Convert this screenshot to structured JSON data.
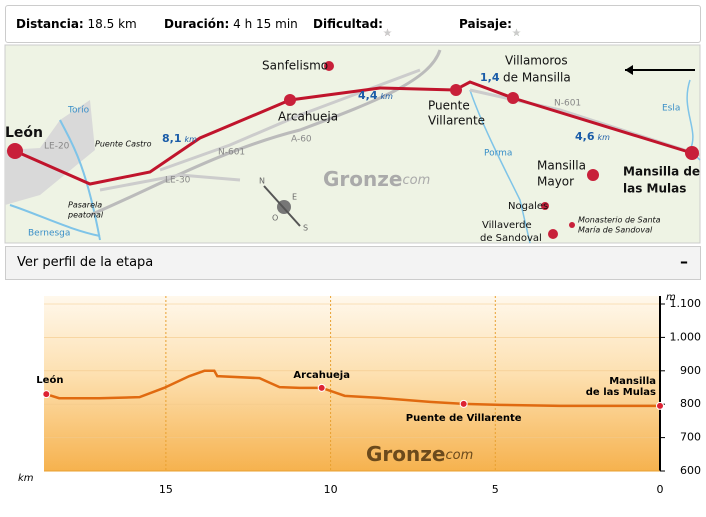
{
  "info": {
    "distance_label": "Distancia:",
    "distance": "18.5 km",
    "duration_label": "Duración:",
    "duration": "4 h 15 min",
    "difficulty": {
      "label": "Dificultad:",
      "filled": 1,
      "stars": 5,
      "color": "#e0303a"
    },
    "scenery": {
      "label": "Paisaje:",
      "filled": 1,
      "stars": 5,
      "color": "#6abf2a"
    }
  },
  "map": {
    "places": [
      "León",
      "Sanfelismo",
      "Arcahueja",
      "Puente",
      "Villarente",
      "Villamoros",
      "de Mansilla",
      "Mansilla",
      "Mayor",
      "Mansilla de",
      "las Mulas",
      "Nogales",
      "Villaverde",
      "de Sandoval",
      "Monasterio de Santa",
      "María de Sandoval"
    ],
    "roads": [
      "LE-20",
      "N-601",
      "A-60",
      "LE-30",
      "N-601",
      "Torío",
      "Porma",
      "Esla",
      "Bernesga",
      "Puente Castro",
      "Pasarela",
      "peatonal"
    ],
    "distances": [
      {
        "value": "8,1",
        "unit": "km"
      },
      {
        "value": "4,4",
        "unit": "km"
      },
      {
        "value": "1,4"
      },
      {
        "value": "4,6",
        "unit": "km"
      }
    ],
    "compass": [
      "N",
      "E",
      "S",
      "O"
    ],
    "watermark": {
      "text": "Gronze",
      "suffix": "com"
    }
  },
  "profile_header": {
    "title": "Ver perfil de la etapa",
    "toggle": "–"
  },
  "chart_data": {
    "type": "line",
    "x_label": "km",
    "y_label": "m",
    "color": "#e06a10",
    "x": [
      18.63,
      18.24,
      17.02,
      15.8,
      15.05,
      14.29,
      13.83,
      13.53,
      13.44,
      12.16,
      11.55,
      10.94,
      10.27,
      9.57,
      8.51,
      6.99,
      5.96,
      4.86,
      3.04,
      0
    ],
    "values": [
      830,
      818,
      818,
      821,
      849,
      884,
      900,
      900,
      884,
      878,
      851,
      849,
      849,
      825,
      819,
      807,
      801,
      798,
      795,
      795
    ],
    "xlim": [
      18.7,
      0
    ],
    "ylim": [
      600,
      1100
    ],
    "xticks": [
      15,
      10,
      5,
      0
    ],
    "yticks": [
      {
        "value": 1100,
        "label": "1.100"
      },
      {
        "value": 1000,
        "label": "1.000"
      },
      900,
      800,
      700,
      600
    ],
    "annotations": [
      {
        "text": "León",
        "x": 18.63,
        "y": 830
      },
      {
        "text": "Arcahueja",
        "x": 10.27,
        "y": 849
      },
      {
        "text": "Puente de Villarente",
        "x": 5.96,
        "y": 801
      },
      {
        "text": "Mansilla\nde las Mulas",
        "x": 0,
        "y": 795
      }
    ],
    "watermark": {
      "text": "Gronze",
      "suffix": "com"
    }
  }
}
